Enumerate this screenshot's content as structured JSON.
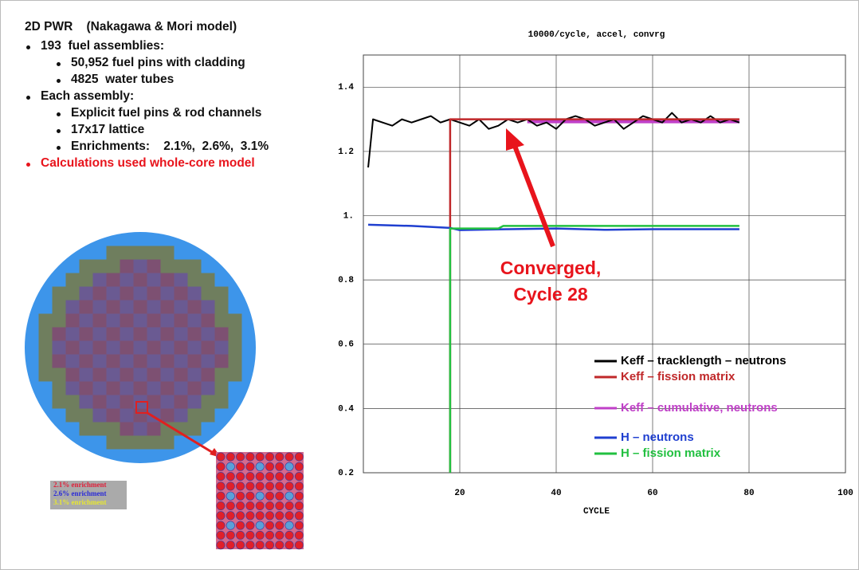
{
  "slide": {
    "heading": "2D PWR    (Nakagawa & Mori model)",
    "bullets": [
      {
        "text": "193  fuel assemblies:",
        "items": [
          "50,952 fuel pins with cladding",
          "4825  water tubes"
        ]
      },
      {
        "text": "Each assembly:",
        "items": [
          "Explicit fuel pins & rod channels",
          "17x17 lattice",
          "Enrichments:    2.1%,  2.6%,  3.1%"
        ]
      },
      {
        "text": "Calculations used whole-core model",
        "color": "#e8141c"
      }
    ],
    "enrichment_legend": [
      {
        "text": "2.1% enrichment",
        "color": "#e0203a"
      },
      {
        "text": "2.6% enrichment",
        "color": "#2a2ad8"
      },
      {
        "text": "3.1% enrichment",
        "color": "#e8e830"
      }
    ]
  },
  "chart_data": {
    "type": "line",
    "title": "10000/cycle, accel, convrg",
    "xlabel": "CYCLE",
    "xlim": [
      0,
      100
    ],
    "xticks": [
      20,
      40,
      60,
      80,
      100
    ],
    "ylim": [
      0.2,
      1.5
    ],
    "yticks": [
      0.2,
      0.4,
      0.6,
      0.8,
      {
        "value": 1,
        "label": "1."
      },
      1.2,
      1.4
    ],
    "grid": true,
    "annotation": [
      "Converged,",
      "Cycle 28"
    ],
    "annotation_color": "#e8141c",
    "series": [
      {
        "name": "Keff – tracklength – neutrons",
        "color": "#000000",
        "x": [
          1,
          2,
          4,
          6,
          8,
          10,
          12,
          14,
          16,
          18,
          20,
          22,
          24,
          26,
          28,
          30,
          32,
          34,
          36,
          38,
          40,
          42,
          44,
          46,
          48,
          50,
          52,
          54,
          56,
          58,
          60,
          62,
          64,
          66,
          68,
          70,
          72,
          74,
          76,
          78
        ],
        "values": [
          1.15,
          1.3,
          1.29,
          1.28,
          1.3,
          1.29,
          1.3,
          1.31,
          1.29,
          1.3,
          1.29,
          1.28,
          1.3,
          1.27,
          1.28,
          1.3,
          1.29,
          1.3,
          1.28,
          1.29,
          1.27,
          1.3,
          1.31,
          1.3,
          1.28,
          1.29,
          1.3,
          1.27,
          1.29,
          1.31,
          1.3,
          1.29,
          1.32,
          1.29,
          1.3,
          1.29,
          1.31,
          1.29,
          1.3,
          1.29
        ]
      },
      {
        "name": "Keff – fission matrix",
        "color": "#c0282a",
        "x": [
          18,
          18,
          78
        ],
        "values": [
          0.2,
          1.3,
          1.3
        ]
      },
      {
        "name": "Keff – cumulative, neutrons",
        "color": "#c040c8",
        "x": [
          34,
          78
        ],
        "values": [
          1.295,
          1.295
        ]
      },
      {
        "name": "H – neutrons",
        "color": "#1f3fd0",
        "x": [
          1,
          10,
          18,
          20,
          30,
          40,
          50,
          60,
          78
        ],
        "values": [
          0.972,
          0.968,
          0.962,
          0.955,
          0.958,
          0.96,
          0.956,
          0.958,
          0.958
        ]
      },
      {
        "name": "H – fission matrix",
        "color": "#22c040",
        "x": [
          18,
          18,
          28,
          29,
          78
        ],
        "values": [
          0.2,
          0.96,
          0.96,
          0.968,
          0.968
        ]
      }
    ]
  }
}
